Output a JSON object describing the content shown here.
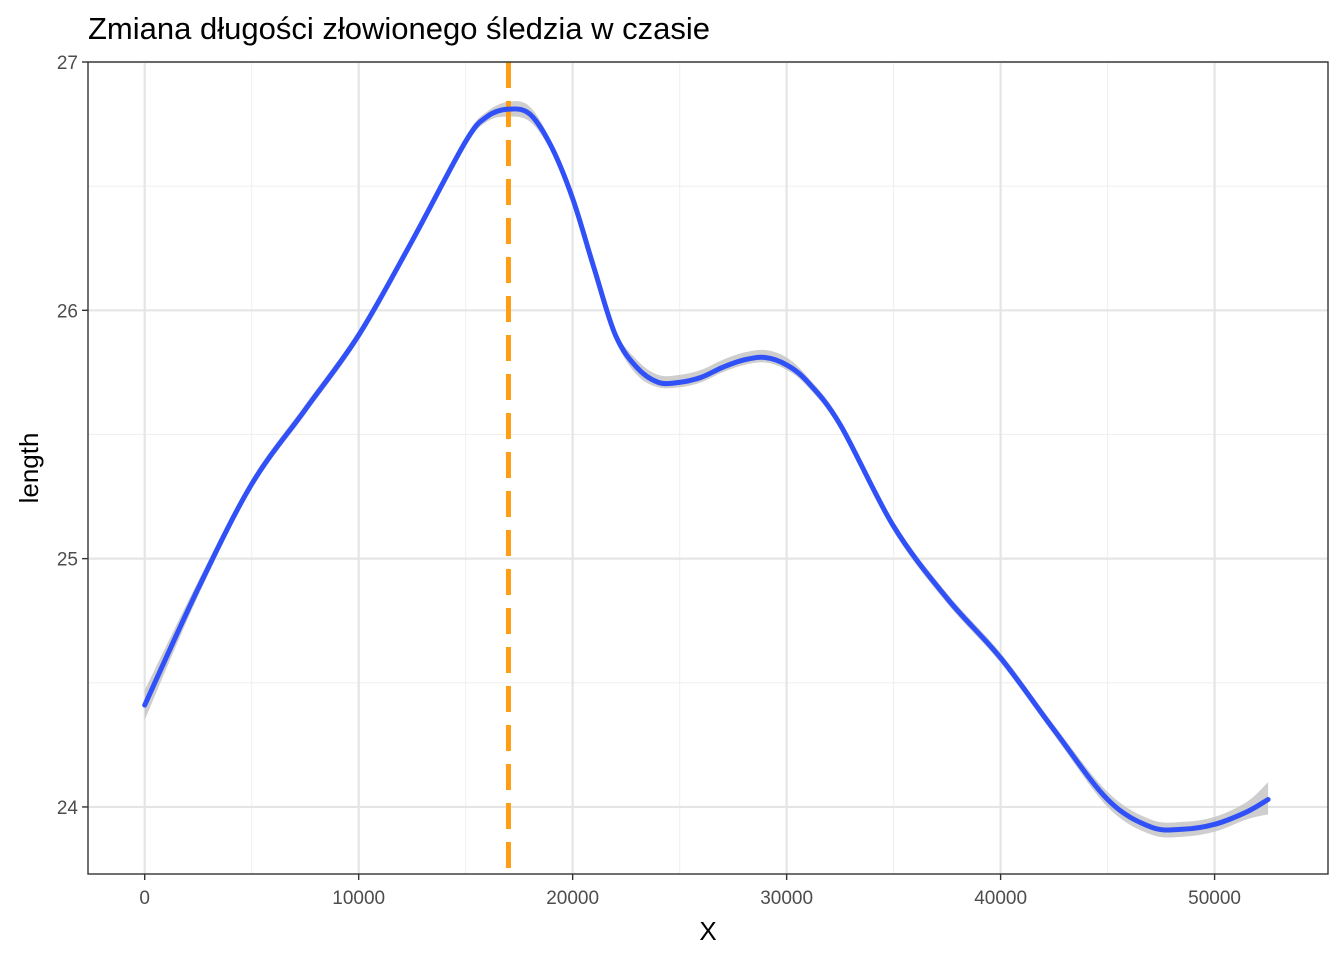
{
  "chart_data": {
    "type": "line",
    "title": "Zmiana długości złowionego śledzia w czasie",
    "xlabel": "X",
    "ylabel": "length",
    "xlim": [
      -2650,
      55300
    ],
    "ylim": [
      23.73,
      27.0
    ],
    "x_ticks": [
      0,
      10000,
      20000,
      30000,
      40000,
      50000
    ],
    "x_tick_labels": [
      "0",
      "10000",
      "20000",
      "30000",
      "40000",
      "50000"
    ],
    "y_ticks": [
      24,
      25,
      26,
      27
    ],
    "y_tick_labels": [
      "24",
      "25",
      "26",
      "27"
    ],
    "grid": true,
    "theme": "bw",
    "series": [
      {
        "type": "smooth",
        "color": "#3050f8",
        "band_color": "#bdbdbd",
        "x": [
          0,
          2500,
          5000,
          7500,
          10000,
          12500,
          15000,
          16000,
          17000,
          18000,
          19000,
          20000,
          21000,
          22000,
          23000,
          24000,
          25000,
          26000,
          27000,
          28000,
          29000,
          30000,
          31000,
          32500,
          35000,
          37500,
          40000,
          42500,
          45000,
          47000,
          48500,
          50000,
          51500,
          52500
        ],
        "y": [
          24.41,
          24.88,
          25.3,
          25.6,
          25.9,
          26.28,
          26.68,
          26.78,
          26.81,
          26.79,
          26.66,
          26.45,
          26.17,
          25.9,
          25.77,
          25.71,
          25.71,
          25.73,
          25.77,
          25.8,
          25.81,
          25.78,
          25.71,
          25.54,
          25.13,
          24.84,
          24.6,
          24.31,
          24.03,
          23.92,
          23.91,
          23.93,
          23.98,
          24.03
        ],
        "y_lower": [
          24.35,
          24.85,
          25.28,
          25.58,
          25.88,
          26.26,
          26.66,
          26.76,
          26.78,
          26.76,
          26.64,
          26.43,
          26.15,
          25.88,
          25.74,
          25.69,
          25.69,
          25.71,
          25.75,
          25.78,
          25.79,
          25.76,
          25.69,
          25.52,
          25.11,
          24.82,
          24.58,
          24.29,
          24.0,
          23.89,
          23.88,
          23.9,
          23.95,
          23.97
        ],
        "y_upper": [
          24.47,
          24.91,
          25.32,
          25.62,
          25.92,
          26.3,
          26.7,
          26.8,
          26.84,
          26.82,
          26.68,
          26.47,
          26.19,
          25.92,
          25.8,
          25.74,
          25.74,
          25.76,
          25.8,
          25.83,
          25.84,
          25.81,
          25.73,
          25.56,
          25.15,
          24.86,
          24.62,
          24.33,
          24.06,
          23.95,
          23.94,
          23.96,
          24.02,
          24.1
        ]
      }
    ],
    "vline": {
      "x": 17000,
      "color": "#ff9d14",
      "style": "dashed"
    }
  }
}
